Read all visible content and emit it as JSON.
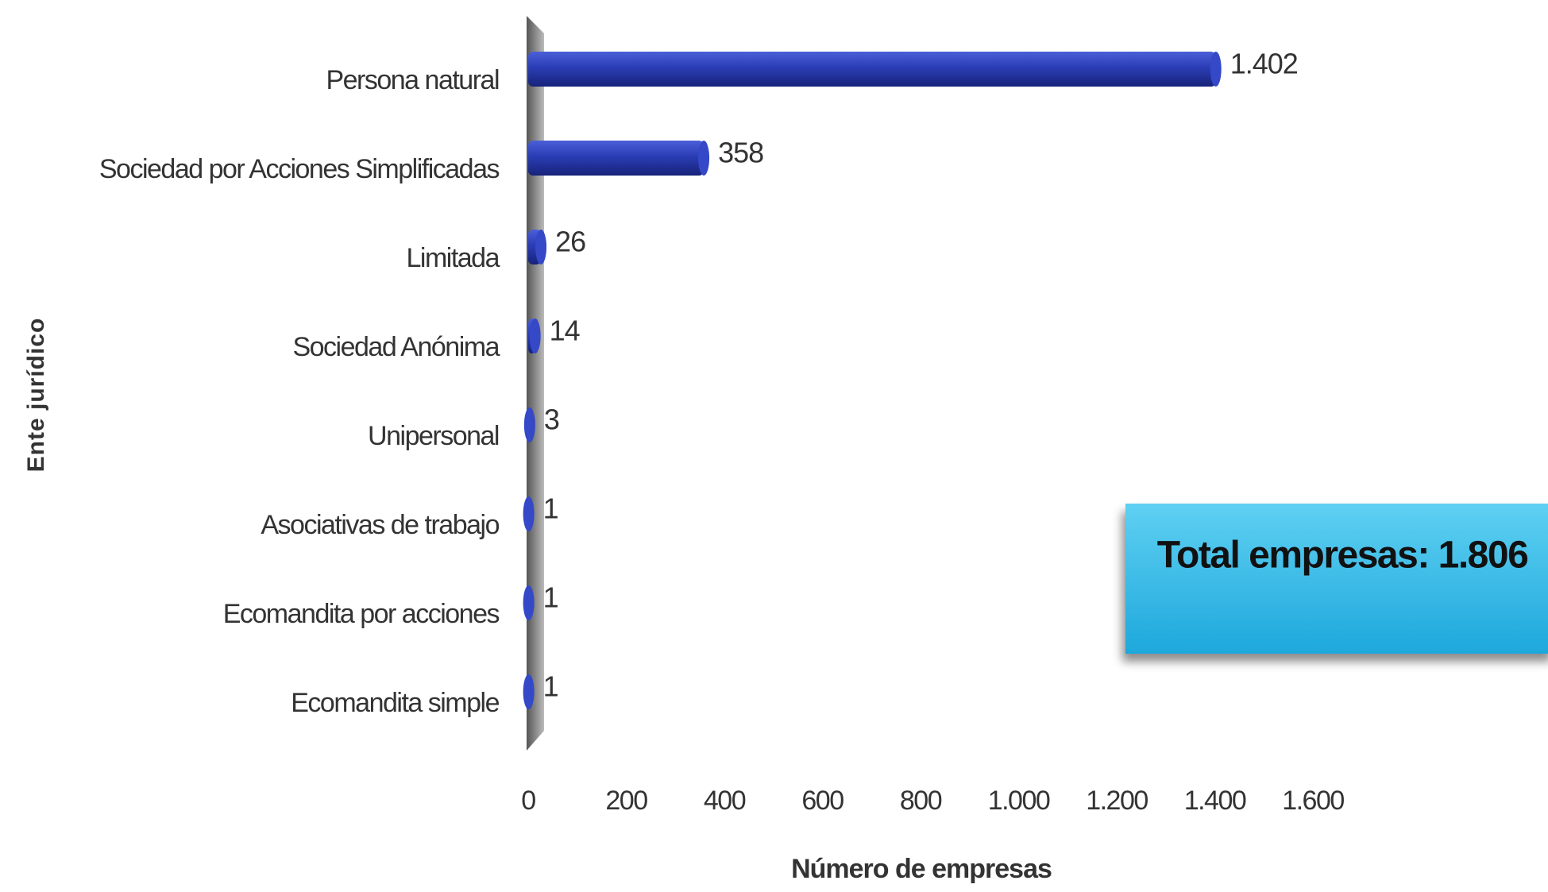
{
  "chart_data": {
    "type": "bar",
    "orientation": "horizontal",
    "categories": [
      "Persona natural",
      "Sociedad por Acciones Simplificadas",
      "Limitada",
      "Sociedad Anónima",
      "Unipersonal",
      "Asociativas de trabajo",
      "Ecomandita por acciones",
      "Ecomandita simple"
    ],
    "values": [
      1402,
      358,
      26,
      14,
      3,
      1,
      1,
      1
    ],
    "value_labels": [
      "1.402",
      "358",
      "26",
      "14",
      "3",
      "1",
      "1",
      "1"
    ],
    "color": "#2b3db5",
    "xlim": [
      0,
      1600
    ],
    "xticks": [
      0,
      200,
      400,
      600,
      800,
      {
        "value": 1000,
        "label": "1.000"
      },
      {
        "value": 1200,
        "label": "1.200"
      },
      {
        "value": 1400,
        "label": "1.400"
      },
      {
        "value": 1600,
        "label": "1.600"
      }
    ],
    "xlabel": "Número de empresas",
    "ylabel": "Ente jurídico",
    "annotation": "Total empresas: 1.806"
  }
}
